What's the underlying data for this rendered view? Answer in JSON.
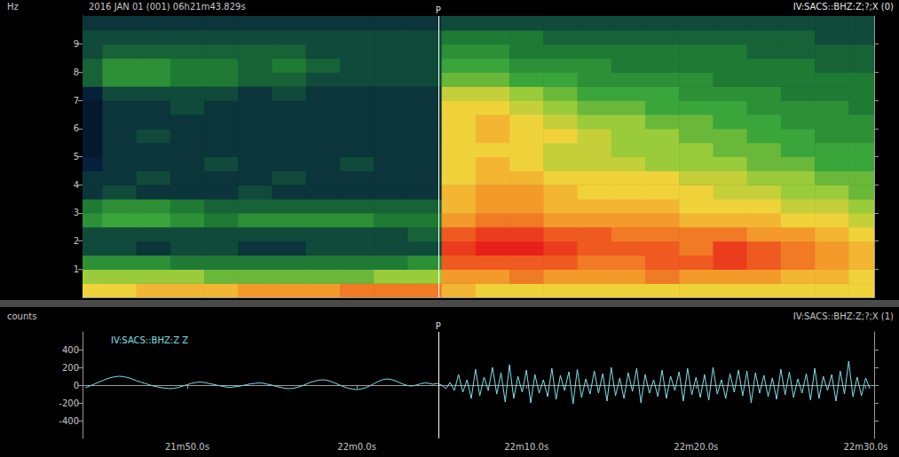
{
  "chart_data": [
    {
      "type": "heatmap",
      "title": "2016 JAN 01 (001) 06h21m43.829s",
      "subtitle": "IV:SACS::BHZ:Z;?;X (0)",
      "y_label": "Hz",
      "xlim": [
        43.829,
        90.5
      ],
      "ylim": [
        0,
        10
      ],
      "yticks": [
        1,
        2,
        3,
        4,
        5,
        6,
        7,
        8,
        9
      ],
      "tick_labels": "y",
      "grid": false,
      "zlim": [
        0,
        10
      ],
      "x": [
        44,
        46,
        48,
        50,
        52,
        54,
        56,
        58,
        60,
        62,
        64,
        66,
        68,
        70,
        72,
        74,
        76,
        78,
        80,
        82,
        84,
        86,
        88,
        90
      ],
      "y": [
        0.25,
        0.75,
        1.25,
        1.75,
        2.25,
        2.75,
        3.25,
        3.75,
        4.25,
        4.75,
        5.25,
        5.75,
        6.25,
        6.75,
        7.25,
        7.75,
        8.25,
        8.75,
        9.25,
        9.75
      ],
      "cells": [
        [
          7,
          7,
          7.5,
          7.5,
          7.5,
          8,
          8,
          8,
          8.5,
          8.5,
          8.5,
          7.5,
          7,
          7,
          7,
          7,
          7,
          7,
          7,
          7,
          7,
          7,
          7,
          7
        ],
        [
          6,
          6,
          6,
          6,
          5.5,
          5.5,
          5.5,
          5.5,
          5.5,
          6,
          6,
          8,
          8,
          8.5,
          8,
          8,
          8,
          8.5,
          8,
          8,
          8,
          7.5,
          7.5,
          7
        ],
        [
          4.5,
          4.5,
          4.5,
          4,
          4,
          4,
          4,
          4,
          4,
          4,
          4.5,
          9,
          9,
          9,
          9,
          8.5,
          8.5,
          9,
          9,
          9.5,
          9,
          8.5,
          8,
          7.5
        ],
        [
          3,
          3,
          2.5,
          3,
          3,
          2.5,
          2.5,
          3,
          3,
          3,
          3,
          9.5,
          10,
          10,
          9.5,
          9,
          9,
          9,
          8.5,
          9.5,
          9,
          8.5,
          8,
          7.5
        ],
        [
          3,
          3,
          3,
          3,
          3,
          3,
          3,
          3,
          3,
          3,
          3.5,
          9,
          9.5,
          9.5,
          9,
          9,
          8.5,
          8.5,
          8.5,
          8.5,
          8,
          8,
          7.5,
          7
        ],
        [
          4.5,
          5,
          5,
          4.5,
          4,
          4.5,
          4.5,
          4.5,
          4.5,
          4,
          4,
          8,
          8.5,
          8.5,
          8,
          8,
          8,
          8,
          7.5,
          7.5,
          7.5,
          7,
          7,
          6.5
        ],
        [
          4,
          4.5,
          4.5,
          4,
          3.5,
          3.5,
          3.5,
          3.5,
          3.5,
          3.5,
          3.5,
          7.5,
          8,
          8,
          7.5,
          7.5,
          7.5,
          7.5,
          7,
          7,
          7,
          6.5,
          6.5,
          6
        ],
        [
          2.5,
          3,
          2.5,
          2.5,
          2.5,
          3,
          2.5,
          2.5,
          2.5,
          2.5,
          2.5,
          7.5,
          8,
          8,
          7.5,
          7,
          7,
          7,
          7,
          6.5,
          6.5,
          6,
          6,
          5.5
        ],
        [
          2.5,
          2.5,
          3,
          2.5,
          2.5,
          2.5,
          3,
          2.5,
          2.5,
          2.5,
          2.5,
          7,
          7.5,
          7.5,
          7,
          7,
          7,
          7,
          6.5,
          6.5,
          6,
          6,
          5.5,
          5.5
        ],
        [
          2,
          2.5,
          2.5,
          2.5,
          3,
          2.5,
          2.5,
          2.5,
          3,
          2.5,
          2.5,
          7,
          7.5,
          7,
          6.5,
          6.5,
          6.5,
          6,
          6,
          6,
          5.5,
          5.5,
          5,
          5
        ],
        [
          1.5,
          2.5,
          2.5,
          2.5,
          2.5,
          2.5,
          2.5,
          2.5,
          2.5,
          2.5,
          2.5,
          7,
          7,
          7,
          6.5,
          6.5,
          6,
          6,
          6,
          5.5,
          5.5,
          5,
          5,
          5
        ],
        [
          1.5,
          2.5,
          3,
          2.5,
          2.5,
          2.5,
          2.5,
          2.5,
          2.5,
          2.5,
          2.5,
          7,
          7.5,
          7,
          7,
          6.5,
          6,
          6,
          5.5,
          5.5,
          5,
          5,
          4.5,
          4.5
        ],
        [
          1.5,
          2.5,
          2.5,
          2.5,
          2.5,
          2.5,
          2.5,
          2.5,
          2.5,
          2.5,
          2.5,
          7,
          7.5,
          7,
          6.5,
          6,
          6,
          5.5,
          5.5,
          5,
          5,
          4.5,
          4.5,
          4.5
        ],
        [
          1.5,
          2.5,
          2.5,
          3,
          2.5,
          2.5,
          2.5,
          2.5,
          2.5,
          2.5,
          2.5,
          7,
          7,
          6.5,
          6,
          5.5,
          5.5,
          5,
          5,
          5,
          4.5,
          4.5,
          4.5,
          4
        ],
        [
          2,
          3,
          3,
          3,
          3,
          2.5,
          3,
          2.5,
          2.5,
          2.5,
          2.5,
          6.5,
          6.5,
          6,
          5.5,
          5,
          5,
          5,
          4.5,
          4.5,
          4.5,
          4,
          4,
          4
        ],
        [
          3.5,
          4.5,
          4.5,
          4,
          4,
          3.5,
          3.5,
          3,
          3,
          3,
          3,
          5.5,
          5.5,
          5,
          5,
          4.5,
          4.5,
          4.5,
          4.5,
          4,
          4,
          4,
          4,
          4
        ],
        [
          3.5,
          4.5,
          4.5,
          4,
          4,
          3.5,
          4,
          3.5,
          3,
          3,
          3,
          5,
          5,
          4.5,
          4.5,
          4.5,
          4,
          4,
          4,
          4,
          4,
          4,
          3.5,
          3.5
        ],
        [
          3,
          3.5,
          3.5,
          3.5,
          3.5,
          3.5,
          3.5,
          3,
          3,
          3,
          3,
          4.5,
          4.5,
          4,
          4,
          4,
          4,
          4,
          4,
          4,
          3.5,
          3.5,
          3.5,
          3.5
        ],
        [
          3,
          3,
          3,
          3,
          3,
          3,
          3,
          3,
          3,
          3,
          3,
          4,
          4,
          4,
          3.5,
          3.5,
          3.5,
          3.5,
          3.5,
          3.5,
          3.5,
          3.5,
          3,
          3
        ],
        [
          2.5,
          2.5,
          2.5,
          2.5,
          2.5,
          2.5,
          2.5,
          2.5,
          2.5,
          2.5,
          2.5,
          3,
          3,
          3,
          3,
          3,
          3,
          3,
          3,
          3,
          3,
          3,
          3,
          3
        ]
      ],
      "annotations": [
        {
          "text": "P",
          "x": 64.8
        }
      ]
    },
    {
      "type": "line",
      "title": "IV:SACS::BHZ:Z Z",
      "subtitle": "IV:SACS::BHZ:Z;?;X (1)",
      "y_label": "counts",
      "color": "#7fe0ea",
      "grid": false,
      "xlim": [
        43.829,
        90.5
      ],
      "xticks": [
        {
          "value": 50,
          "label": "21m50.0s"
        },
        {
          "value": 60,
          "label": "22m0.0s"
        },
        {
          "value": 70,
          "label": "22m10.0s"
        },
        {
          "value": 80,
          "label": "22m20.0s"
        },
        {
          "value": 90,
          "label": "22m30.0s"
        }
      ],
      "ylim": [
        -600,
        600
      ],
      "yticks": [
        -400,
        -200,
        0,
        200,
        400
      ],
      "annotations": [
        {
          "text": "P",
          "x": 64.8
        }
      ],
      "x": [
        44,
        44.25,
        44.5,
        44.75,
        45,
        45.25,
        45.5,
        45.75,
        46,
        46.25,
        46.5,
        46.75,
        47,
        47.25,
        47.5,
        47.75,
        48,
        48.25,
        48.5,
        48.75,
        49,
        49.25,
        49.5,
        49.75,
        50,
        50.25,
        50.5,
        50.75,
        51,
        51.25,
        51.5,
        51.75,
        52,
        52.25,
        52.5,
        52.75,
        53,
        53.25,
        53.5,
        53.75,
        54,
        54.25,
        54.5,
        54.75,
        55,
        55.25,
        55.5,
        55.75,
        56,
        56.25,
        56.5,
        56.75,
        57,
        57.25,
        57.5,
        57.75,
        58,
        58.25,
        58.5,
        58.75,
        59,
        59.25,
        59.5,
        59.75,
        60,
        60.25,
        60.5,
        60.75,
        61,
        61.25,
        61.5,
        61.75,
        62,
        62.25,
        62.5,
        62.75,
        63,
        63.25,
        63.5,
        63.75,
        64,
        64.25,
        64.5,
        64.75,
        65,
        65.25,
        65.5,
        65.75,
        66,
        66.25,
        66.5,
        66.75,
        67,
        67.25,
        67.5,
        67.75,
        68,
        68.25,
        68.5,
        68.75,
        69,
        69.25,
        69.5,
        69.75,
        70,
        70.25,
        70.5,
        70.75,
        71,
        71.25,
        71.5,
        71.75,
        72,
        72.25,
        72.5,
        72.75,
        73,
        73.25,
        73.5,
        73.75,
        74,
        74.25,
        74.5,
        74.75,
        75,
        75.25,
        75.5,
        75.75,
        76,
        76.25,
        76.5,
        76.75,
        77,
        77.25,
        77.5,
        77.75,
        78,
        78.25,
        78.5,
        78.75,
        79,
        79.25,
        79.5,
        79.75,
        80,
        80.25,
        80.5,
        80.75,
        81,
        81.25,
        81.5,
        81.75,
        82,
        82.25,
        82.5,
        82.75,
        83,
        83.25,
        83.5,
        83.75,
        84,
        84.25,
        84.5,
        84.75,
        85,
        85.25,
        85.5,
        85.75,
        86,
        86.25,
        86.5,
        86.75,
        87,
        87.25,
        87.5,
        87.75,
        88,
        88.25,
        88.5,
        88.75,
        89,
        89.25,
        89.5,
        89.75,
        90,
        90.25
      ],
      "values": [
        -30,
        -10,
        10,
        30,
        50,
        70,
        85,
        95,
        100,
        95,
        85,
        70,
        50,
        35,
        20,
        5,
        -10,
        -20,
        -30,
        -35,
        -40,
        -35,
        -25,
        -10,
        5,
        20,
        30,
        35,
        30,
        20,
        10,
        0,
        -10,
        -20,
        -25,
        -20,
        -15,
        -5,
        5,
        15,
        20,
        25,
        20,
        10,
        0,
        -15,
        -25,
        -35,
        -40,
        -35,
        -25,
        -10,
        10,
        30,
        45,
        55,
        60,
        55,
        40,
        20,
        0,
        -20,
        -35,
        -45,
        -50,
        -45,
        -30,
        -10,
        15,
        40,
        60,
        70,
        65,
        50,
        30,
        10,
        -5,
        -10,
        0,
        15,
        25,
        20,
        10,
        20,
        0,
        -40,
        30,
        -60,
        120,
        -80,
        60,
        -150,
        180,
        -120,
        90,
        -60,
        200,
        -100,
        140,
        -190,
        230,
        -150,
        100,
        -80,
        170,
        -200,
        120,
        -90,
        60,
        -130,
        190,
        -160,
        110,
        -60,
        150,
        -210,
        180,
        -140,
        70,
        -100,
        160,
        -90,
        130,
        -180,
        200,
        -120,
        80,
        -150,
        140,
        -70,
        190,
        -200,
        120,
        -90,
        60,
        -130,
        170,
        -150,
        100,
        -60,
        150,
        -180,
        190,
        -110,
        90,
        -140,
        120,
        -170,
        200,
        -100,
        60,
        -150,
        130,
        -80,
        170,
        -120,
        160,
        -200,
        140,
        -90,
        110,
        -130,
        80,
        -160,
        180,
        -110,
        150,
        -140,
        70,
        -90,
        130,
        -170,
        190,
        -150,
        100,
        -60,
        120,
        -180,
        160,
        -100,
        270,
        -130,
        90,
        -120,
        80,
        -40
      ]
    }
  ]
}
